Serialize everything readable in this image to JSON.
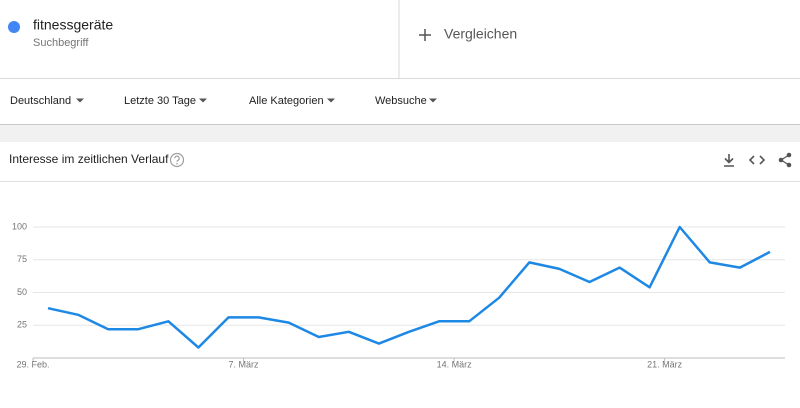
{
  "header": {
    "term": "fitnessgeräte",
    "term_type": "Suchbegriff",
    "compare": "Vergleichen"
  },
  "filters": [
    "Deutschland",
    "Letzte 30 Tage",
    "Alle Kategorien",
    "Websuche"
  ],
  "chart_data": {
    "type": "line",
    "title": "Interesse im zeitlichen Verlauf",
    "categories": [
      "29. Feb.",
      null,
      null,
      null,
      null,
      null,
      null,
      "7. März",
      null,
      null,
      null,
      null,
      null,
      null,
      "14. März",
      null,
      null,
      null,
      null,
      null,
      null,
      "21. März",
      null,
      null,
      null
    ],
    "values": [
      38,
      33,
      22,
      22,
      28,
      8,
      31,
      31,
      27,
      16,
      20,
      11,
      20,
      28,
      28,
      46,
      73,
      68,
      58,
      69,
      54,
      100,
      73,
      69,
      81
    ],
    "color": "#1e88e5",
    "ylim": [
      0,
      100
    ],
    "yticks": [
      25,
      50,
      75,
      100
    ],
    "grid": true
  }
}
